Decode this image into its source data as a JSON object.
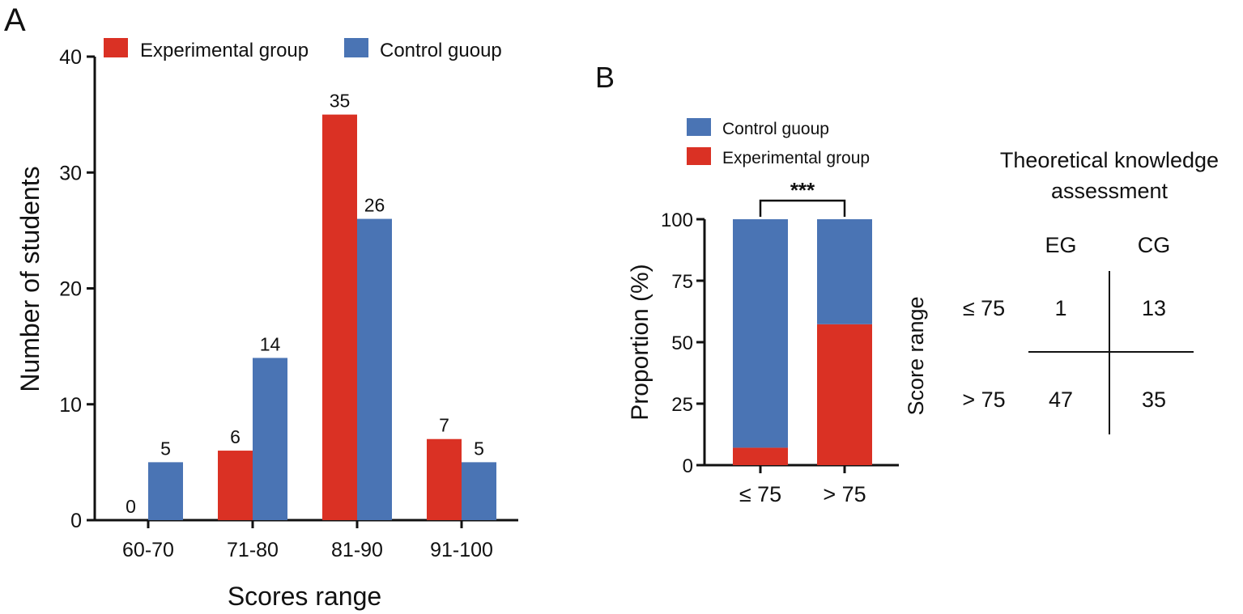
{
  "colors": {
    "experimental": "#DA3124",
    "control": "#4A74B4"
  },
  "chart_data": [
    {
      "panel": "A",
      "type": "bar",
      "title": "",
      "xlabel": "Scores range",
      "ylabel": "Number of students",
      "ylim": [
        0,
        40
      ],
      "yticks": [
        "0",
        "10",
        "20",
        "30",
        "40"
      ],
      "categories": [
        "60-70",
        "71-80",
        "81-90",
        "91-100"
      ],
      "series": [
        {
          "name": "Experimental group",
          "values": [
            0,
            6,
            35,
            7
          ]
        },
        {
          "name": "Control guoup",
          "values": [
            5,
            14,
            26,
            5
          ]
        }
      ],
      "legend": "top"
    },
    {
      "panel": "B",
      "type": "bar",
      "stacked": true,
      "xlabel": "",
      "ylabel": "Proportion (%)",
      "ylim": [
        0,
        100
      ],
      "yticks": [
        "0",
        "25",
        "50",
        "75",
        "100"
      ],
      "categories": [
        "≤ 75",
        "> 75"
      ],
      "series": [
        {
          "name": "Experimental group",
          "values": [
            7.1,
            57.3
          ]
        },
        {
          "name": "Control guoup",
          "values": [
            92.9,
            42.7
          ]
        }
      ],
      "legend_order": [
        "Control guoup",
        "Experimental group"
      ],
      "significance": "***"
    },
    {
      "type": "table",
      "title_lines": [
        "Theoretical knowledge",
        "assessment"
      ],
      "row_axis_label": "Score range",
      "columns": [
        "EG",
        "CG"
      ],
      "rows": [
        {
          "label": "≤ 75",
          "values": [
            "1",
            "13"
          ]
        },
        {
          "label": "> 75",
          "values": [
            "47",
            "35"
          ]
        }
      ]
    }
  ]
}
